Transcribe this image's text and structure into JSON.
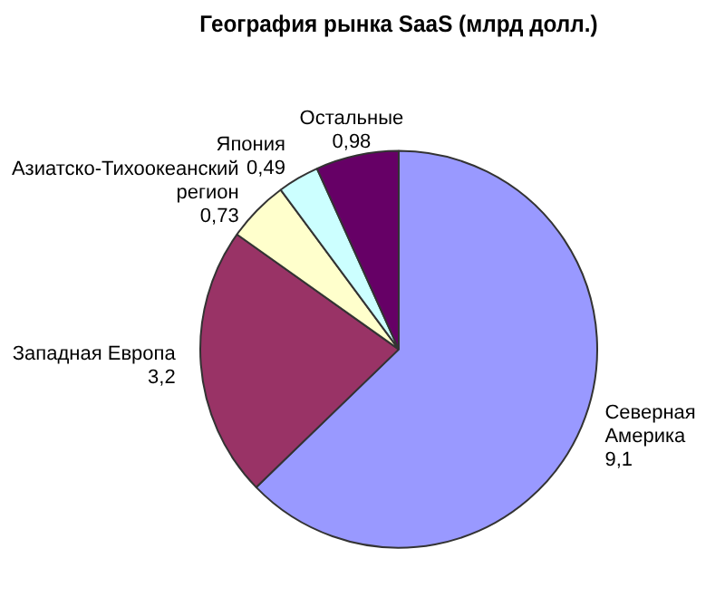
{
  "chart_data": {
    "type": "pie",
    "title": "География рынка SaaS (млрд долл.)",
    "categories": [
      "Северная Америка",
      "Западная Европа",
      "Азиатско-Тихоокеанский регион",
      "Япония",
      "Остальные"
    ],
    "values": [
      9.1,
      3.2,
      0.73,
      0.49,
      0.98
    ],
    "colors": [
      "#9999ff",
      "#993366",
      "#ffffcc",
      "#ccffff",
      "#660066"
    ],
    "value_labels": [
      "9,1",
      "3,2",
      "0,73",
      "0,49",
      "0,98"
    ],
    "legend": false
  }
}
